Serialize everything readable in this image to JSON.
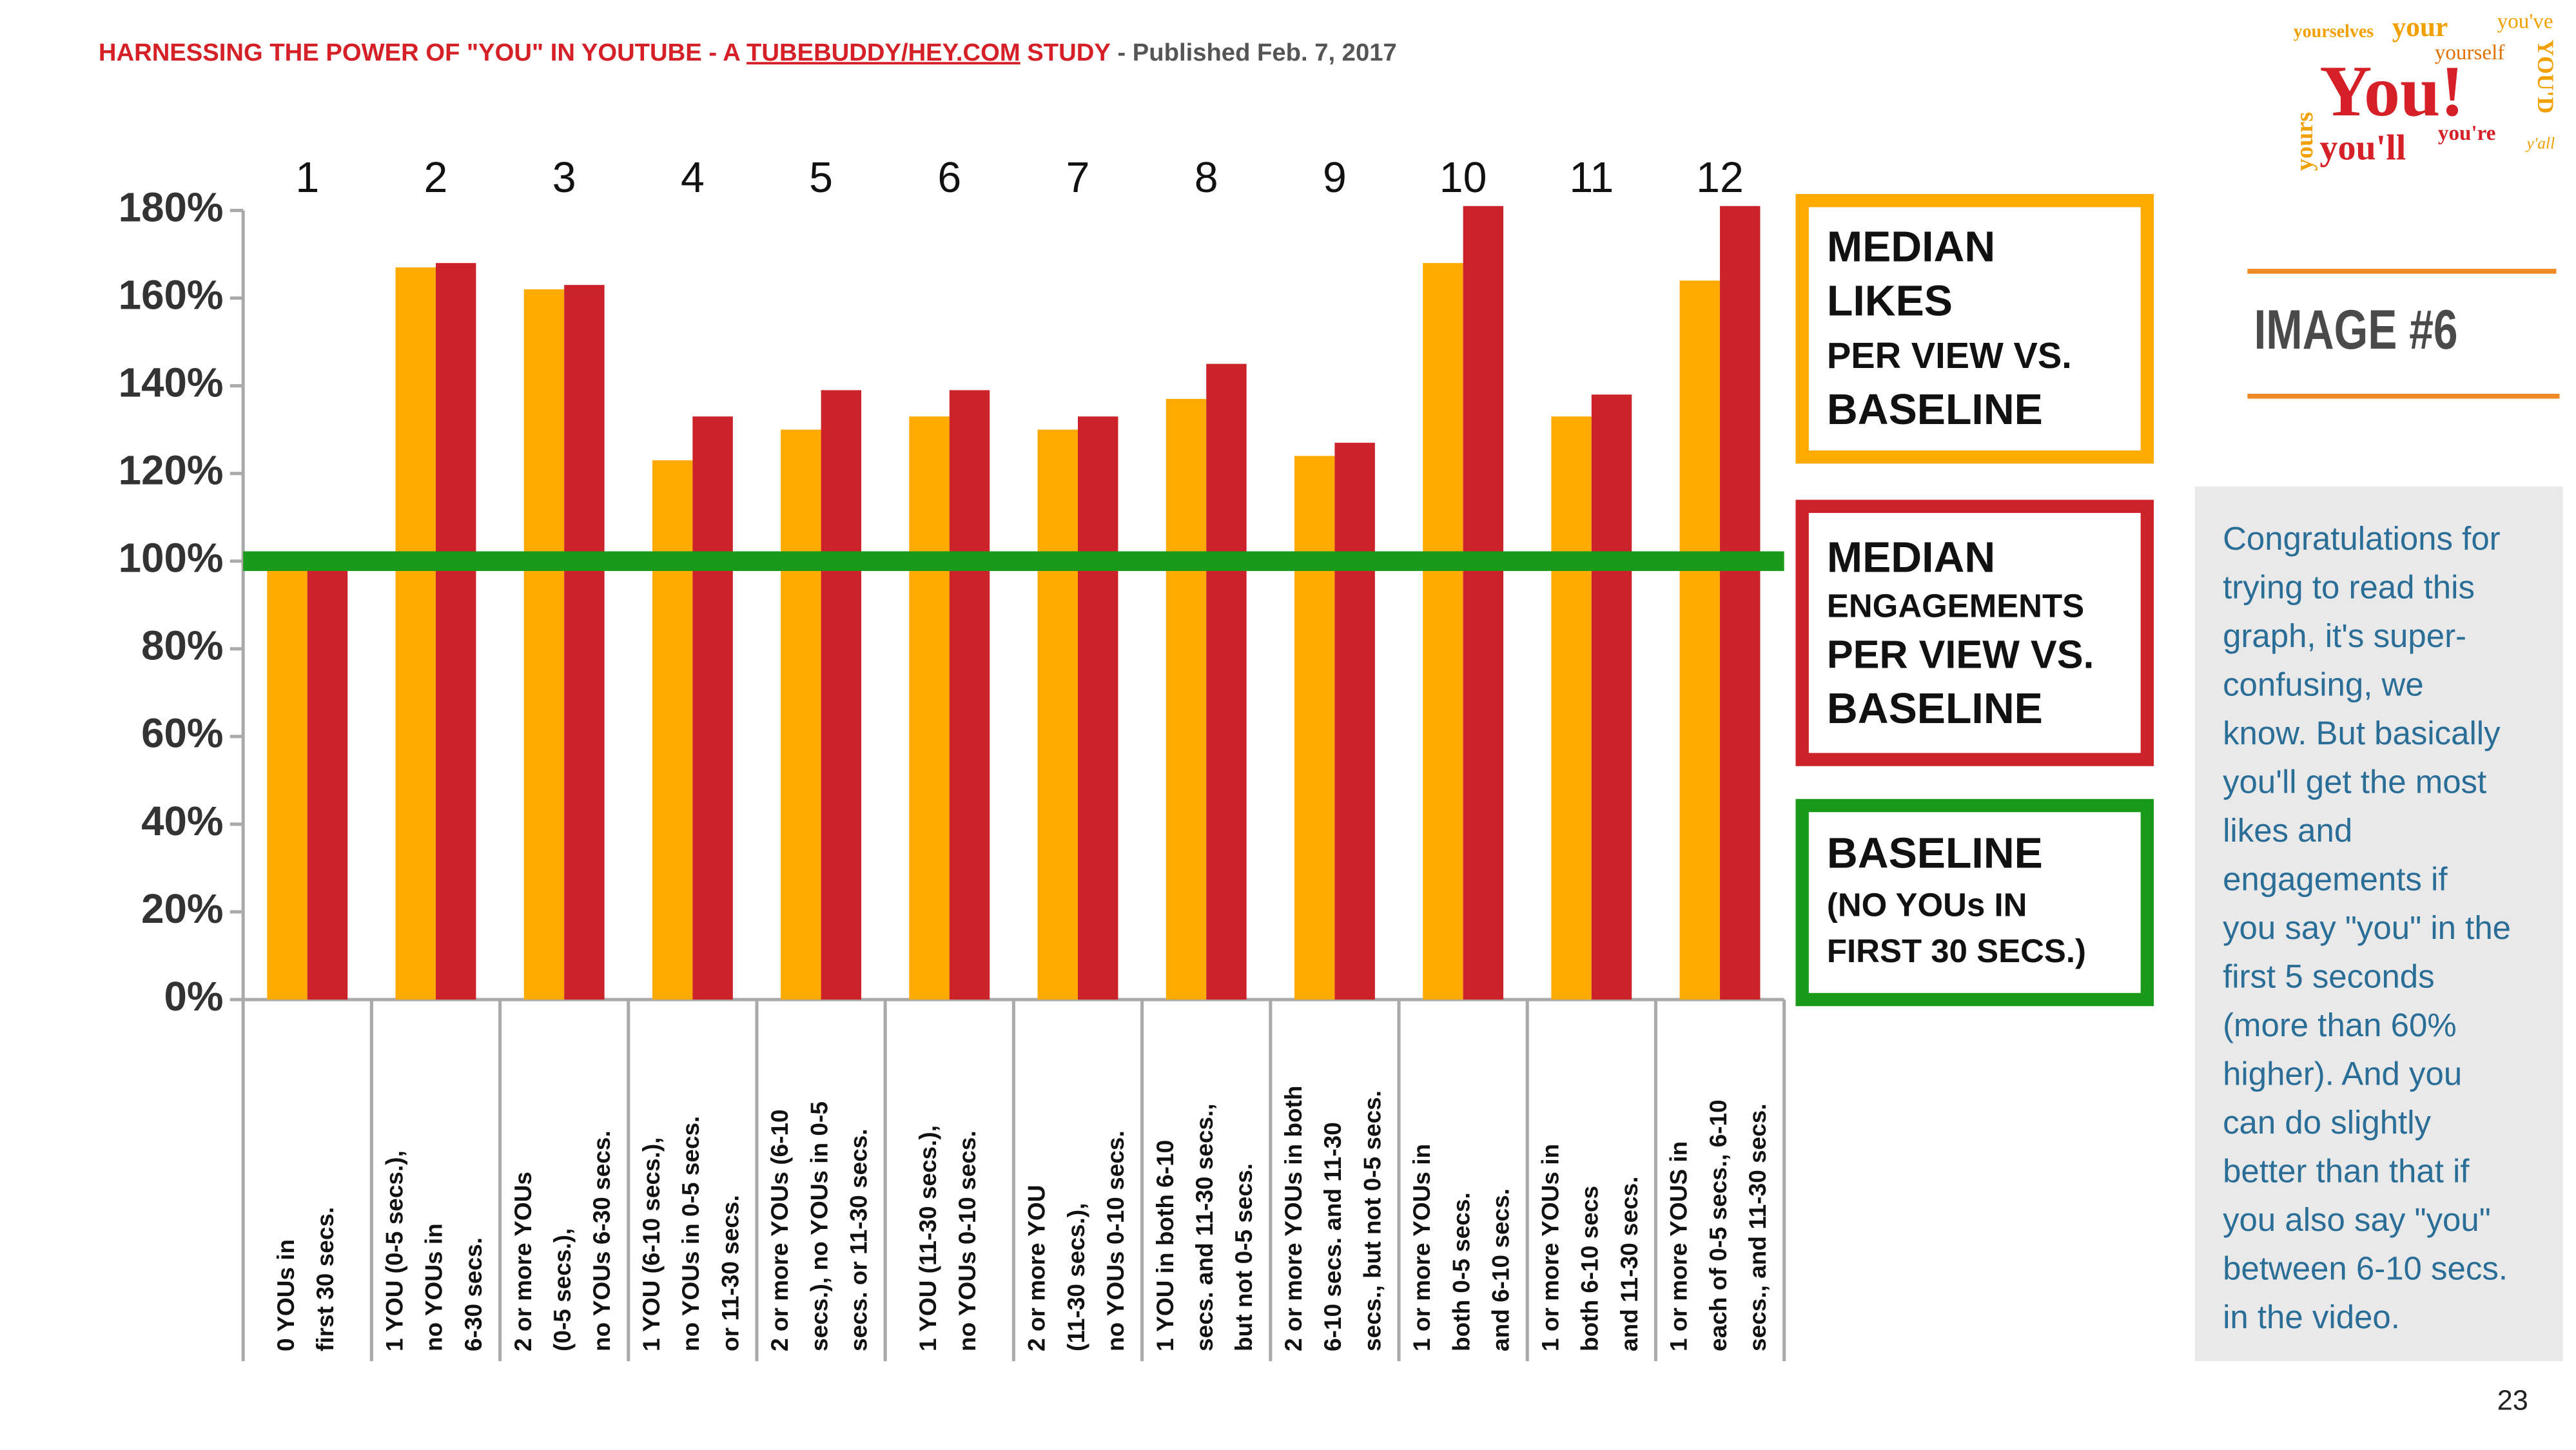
{
  "header": {
    "title": "HARNESSING THE POWER OF \"YOU\" IN YOUTUBE - A ",
    "title_link": "TUBEBUDDY/HEY.COM",
    "title_end": " STUDY",
    "published": " - Published Feb. 7, 2017"
  },
  "logo_words": [
    "yourselves",
    "your",
    "you've",
    "yourself",
    "You!",
    "YOU'D",
    "yours",
    "you'll",
    "you're",
    "y'all"
  ],
  "image_label": "IMAGE #6",
  "note": [
    "Congratulations for",
    "trying to read this",
    "graph, it's super-",
    "confusing, we",
    "know. But basically",
    "you'll get the most",
    "likes and",
    "engagements if",
    "you say \"you\" in the",
    "first 5 seconds",
    "(more than 60%",
    "higher). And you",
    "can do slightly",
    "better than that if",
    "you also say \"you\"",
    "between 6-10 secs.",
    "in the video."
  ],
  "page_number": "23",
  "chart_data": {
    "type": "bar",
    "column_numbers": [
      "1",
      "2",
      "3",
      "4",
      "5",
      "6",
      "7",
      "8",
      "9",
      "10",
      "11",
      "12"
    ],
    "categories": [
      [
        "0 YOUs in",
        "first 30 secs."
      ],
      [
        "1 YOU (0-5 secs.),",
        "no YOUs in",
        "6-30 secs."
      ],
      [
        "2 or more YOUs",
        "(0-5 secs.),",
        "no YOUs 6-30 secs."
      ],
      [
        "1 YOU (6-10 secs.),",
        "no YOUs in 0-5 secs.",
        "or 11-30 secs."
      ],
      [
        "2 or more YOUs (6-10",
        "secs.), no YOUs in 0-5",
        "secs. or 11-30 secs."
      ],
      [
        "1 YOU (11-30 secs.),",
        "no YOUs 0-10 secs."
      ],
      [
        "2 or more YOU",
        "(11-30 secs.),",
        "no YOUs 0-10 secs."
      ],
      [
        "1 YOU in both 6-10",
        "secs. and 11-30 secs.,",
        "but not 0-5 secs."
      ],
      [
        "2 or more YOUs in both",
        "6-10 secs. and 11-30",
        "secs., but not 0-5 secs."
      ],
      [
        "1 or more YOUs in",
        "both 0-5  secs.",
        "and 6-10 secs."
      ],
      [
        "1 or more YOUs in",
        "both 6-10 secs",
        "and 11-30 secs."
      ],
      [
        "1 or more YOUS in",
        "each of 0-5 secs., 6-10",
        "secs., and 11-30 secs."
      ]
    ],
    "series": [
      {
        "name": [
          "MEDIAN",
          "LIKES",
          "PER VIEW VS.",
          "BASELINE"
        ],
        "color": "#ffaa00",
        "values": [
          100,
          167,
          162,
          123,
          130,
          133,
          130,
          137,
          124,
          168,
          133,
          164
        ]
      },
      {
        "name": [
          "MEDIAN",
          "ENGAGEMENTS",
          "PER VIEW VS.",
          "BASELINE"
        ],
        "color": "#cc2229",
        "values": [
          100,
          168,
          163,
          133,
          139,
          139,
          133,
          145,
          127,
          181,
          138,
          181
        ]
      }
    ],
    "baseline": {
      "name": [
        "BASELINE",
        "(NO YOUs IN",
        "FIRST 30 SECS.)"
      ],
      "color": "#1a9a1a",
      "value": 100
    },
    "ylim": [
      0,
      180
    ],
    "yticks": [
      {
        "value": 0,
        "label": "0%"
      },
      {
        "value": 20,
        "label": "20%"
      },
      {
        "value": 40,
        "label": "40%"
      },
      {
        "value": 60,
        "label": "60%"
      },
      {
        "value": 80,
        "label": "80%"
      },
      {
        "value": 100,
        "label": "100%"
      },
      {
        "value": 120,
        "label": "120%"
      },
      {
        "value": 140,
        "label": "140%"
      },
      {
        "value": 160,
        "label": "160%"
      },
      {
        "value": 180,
        "label": "180%"
      }
    ]
  }
}
